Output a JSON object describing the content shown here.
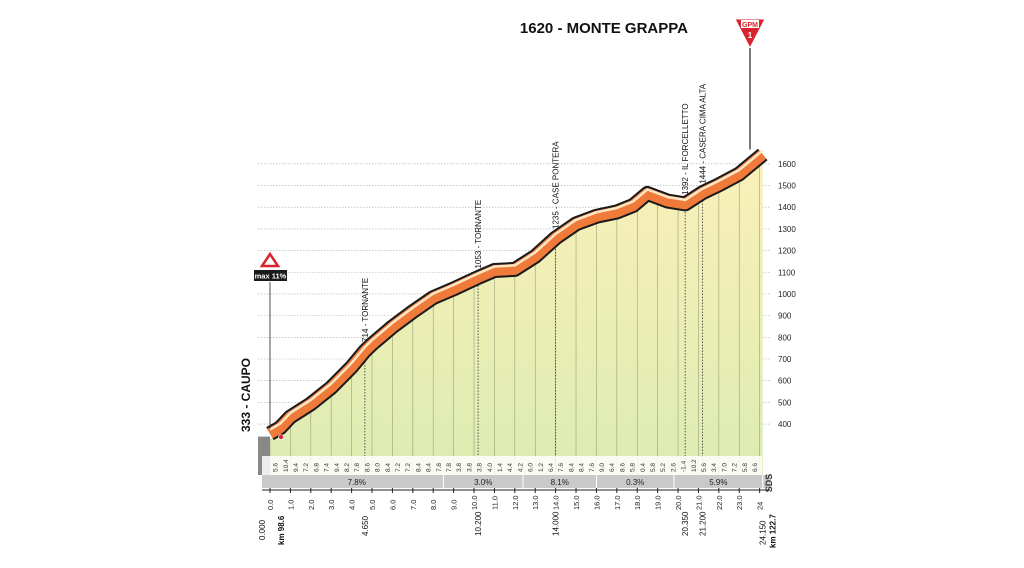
{
  "chart_data": {
    "type": "elevation-profile",
    "title": "1620 - MONTE GRAPPA",
    "badge": {
      "code": "GPM",
      "category": "1"
    },
    "max_gradient_label": "max 11%",
    "start": {
      "label": "333 - CAUPO",
      "km_label": "0.000",
      "route_km": "km 98.6"
    },
    "finish": {
      "km": 24.15,
      "km_label": "24.150",
      "route_km": "km 122.7"
    },
    "x": [
      0,
      0.5,
      1,
      2,
      3,
      4,
      4.65,
      5,
      6,
      7,
      8,
      9,
      10.2,
      11,
      12,
      13,
      14,
      15,
      16,
      17,
      17.8,
      18.5,
      19.5,
      20.35,
      21.2,
      22,
      23,
      24.15
    ],
    "values": [
      333,
      360,
      410,
      470,
      545,
      640,
      714,
      745,
      825,
      895,
      960,
      1000,
      1053,
      1085,
      1090,
      1150,
      1235,
      1300,
      1335,
      1355,
      1385,
      1440,
      1405,
      1392,
      1444,
      1480,
      1530,
      1620
    ],
    "color": "#f07a3a",
    "xlim": [
      0,
      24.15
    ],
    "ylim": [
      165,
      1650
    ],
    "yticks": [
      400,
      500,
      600,
      700,
      800,
      900,
      1000,
      1100,
      1200,
      1300,
      1400,
      1500,
      1600
    ],
    "xticks": [
      {
        "value": 0,
        "label": "0.0"
      },
      {
        "value": 1,
        "label": "1.0"
      },
      {
        "value": 2,
        "label": "2.0"
      },
      {
        "value": 3,
        "label": "3.0"
      },
      {
        "value": 4,
        "label": "4.0"
      },
      {
        "value": 5,
        "label": "5.0"
      },
      {
        "value": 6,
        "label": "6.0"
      },
      {
        "value": 7,
        "label": "7.0"
      },
      {
        "value": 8,
        "label": "8.0"
      },
      {
        "value": 9,
        "label": "9.0"
      },
      {
        "value": 10,
        "label": "10.0"
      },
      {
        "value": 11,
        "label": "11.0"
      },
      {
        "value": 12,
        "label": "12.0"
      },
      {
        "value": 13,
        "label": "13.0"
      },
      {
        "value": 14,
        "label": "14.0"
      },
      {
        "value": 15,
        "label": "15.0"
      },
      {
        "value": 16,
        "label": "16.0"
      },
      {
        "value": 17,
        "label": "17.0"
      },
      {
        "value": 18,
        "label": "18.0"
      },
      {
        "value": 19,
        "label": "19.0"
      },
      {
        "value": 20,
        "label": "20.0"
      },
      {
        "value": 21,
        "label": "21.0"
      },
      {
        "value": 22,
        "label": "22.0"
      },
      {
        "value": 23,
        "label": "23.0"
      },
      24
    ],
    "grid": true,
    "landmarks": [
      {
        "km": 4.65,
        "elevation": 714,
        "label": "714 - TORNANTE",
        "km_label": "4.650"
      },
      {
        "km": 10.2,
        "elevation": 1053,
        "label": "1053 - TORNANTE",
        "km_label": "10.200"
      },
      {
        "km": 14.0,
        "elevation": 1235,
        "label": "1235 - CASE PONTERA",
        "km_label": "14.000"
      },
      {
        "km": 20.35,
        "elevation": 1392,
        "label": "1392 - IL FORCELLETTO",
        "km_label": "20.350"
      },
      {
        "km": 21.2,
        "elevation": 1444,
        "label": "1444 - CASERA CIMA ALTA",
        "km_label": "21.200"
      }
    ],
    "segment_gradients": [
      "5.6",
      "10.4",
      "9.4",
      "7.2",
      "6.8",
      "7.4",
      "9.4",
      "8.2",
      "7.8",
      "8.6",
      "8.0",
      "8.4",
      "7.2",
      "7.2",
      "8.4",
      "8.4",
      "7.8",
      "7.8",
      "3.8",
      "3.8",
      "3.8",
      "4.0",
      "1.4",
      "4.4",
      "4.2",
      "6.0",
      "1.2",
      "6.4",
      "7.6",
      "8.4",
      "8.4",
      "7.6",
      "9.0",
      "6.4",
      "8.6",
      "5.8",
      "0.4",
      "5.8",
      "5.2",
      "2.6",
      "-1.4",
      "10.2",
      "5.6",
      "3.4",
      "7.0",
      "7.2",
      "5.8",
      "6.6"
    ],
    "sections": [
      {
        "from": 0,
        "to": 8.5,
        "label": "7.8%"
      },
      {
        "from": 8.5,
        "to": 12.4,
        "label": "3.0%"
      },
      {
        "from": 12.4,
        "to": 16.0,
        "label": "8.1%"
      },
      {
        "from": 16.0,
        "to": 19.8,
        "label": "0.3%"
      },
      {
        "from": 19.8,
        "to": 24.15,
        "label": "5.9%"
      }
    ],
    "source": "SDS"
  }
}
